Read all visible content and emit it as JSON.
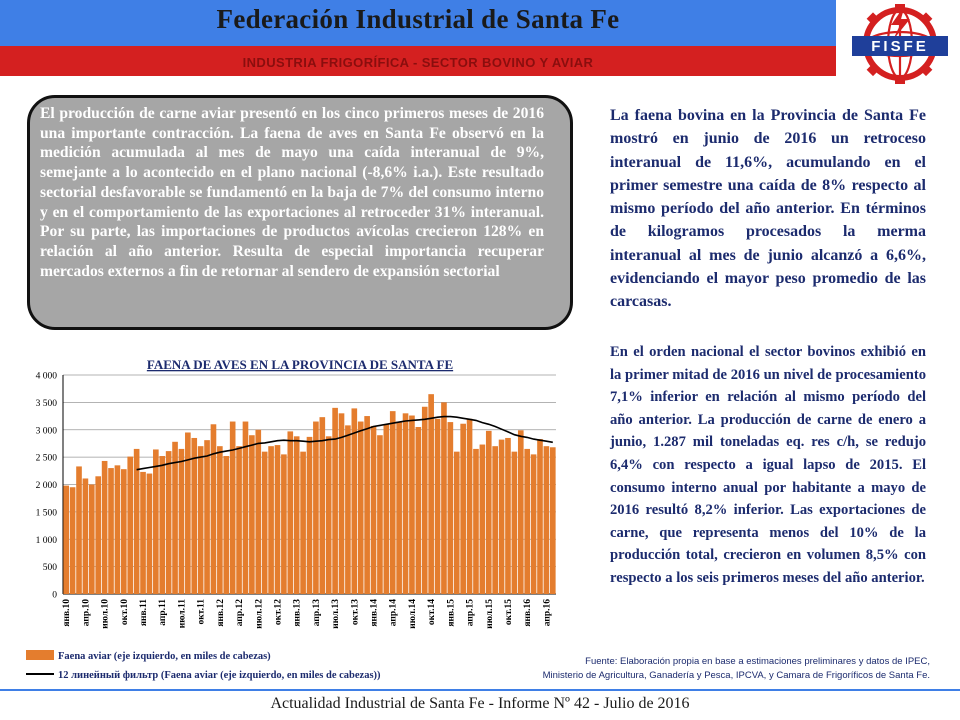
{
  "header": {
    "title": "Federación Industrial de Santa Fe",
    "subtitle": "INDUSTRIA FRIGORÍFICA - SECTOR BOVINO Y AVIAR",
    "logo_text": "FISFE"
  },
  "callout": {
    "text": "El producción de carne aviar presentó en los cinco primeros meses de 2016 una importante contracción. La faena de aves en Santa Fe observó en la medición acumulada al mes de mayo una caída interanual de 9%, semejante a lo acontecido en el plano nacional (-8,6% i.a.). Este resultado sectorial desfavorable se fundamentó en la baja de 7% del consumo interno y en el comportamiento de las exportaciones al retroceder 31% interanual. Por su parte, las importaciones de productos avícolas crecieron 128% en relación al año anterior. Resulta de especial importancia recuperar mercados externos a fin de retornar al sendero de expansión sectorial"
  },
  "right_column": {
    "paragraph_1": "La faena bovina en la Provincia de Santa Fe mostró en junio de 2016 un retroceso interanual de 11,6%, acumulando en el primer semestre una caída de 8% respecto al mismo período del año anterior. En términos de kilogramos procesados la merma interanual al mes de junio alcanzó a 6,6%, evidenciando el mayor peso promedio de las carcasas.",
    "paragraph_2": "En el orden nacional el sector bovinos exhibió en la primer mitad de 2016 un nivel de procesamiento 7,1% inferior en relación al mismo período del año anterior. La producción de carne de enero a junio, 1.287 mil toneladas eq. res c/h, se redujo 6,4% con respecto a igual lapso de 2015. El consumo interno anual por habitante a mayo de 2016 resultó 8,2% inferior. Las exportaciones de carne, que representa menos del 10% de la producción total, crecieron en volumen 8,5% con respecto a los seis primeros meses del año anterior."
  },
  "source": {
    "line_1": "Fuente: Elaboración propia en base a estimaciones preliminares y datos de IPEC,",
    "line_2": "Ministerio de Agricultura, Ganadería y Pesca, IPCVA, y Camara de Frigoríficos de Santa Fe."
  },
  "footer": {
    "text": "Actualidad Industrial de Santa Fe - Informe Nº 42 - Julio de 2016"
  },
  "colors": {
    "bar": "#e47d2e",
    "line": "#000000",
    "header_blue": "#3f7fe6",
    "header_red": "#d42020",
    "text_blue": "#1c2b6e"
  },
  "chart_data": {
    "type": "bar",
    "title": "FAENA DE AVES EN LA PROVINCIA DE SANTA FE",
    "xlabel": "",
    "ylabel": "",
    "ylim": [
      0,
      4000
    ],
    "yticks": [
      0,
      500,
      1000,
      1500,
      2000,
      2500,
      3000,
      3500,
      4000
    ],
    "ytick_labels": [
      "0",
      "500",
      "1 000",
      "1 500",
      "2 000",
      "2 500",
      "3 000",
      "3 500",
      "4 000"
    ],
    "xtick_labels": [
      "янв.10",
      "апр.10",
      "июл.10",
      "окт.10",
      "янв.11",
      "апр.11",
      "июл.11",
      "окт.11",
      "янв.12",
      "апр.12",
      "июл.12",
      "окт.12",
      "янв.13",
      "апр.13",
      "июл.13",
      "окт.13",
      "янв.14",
      "апр.14",
      "июл.14",
      "окт.14",
      "янв.15",
      "апр.15",
      "июл.15",
      "окт.15",
      "янв.16",
      "апр.16"
    ],
    "grid": true,
    "legend_position": "bottom-left",
    "series": [
      {
        "name": "Faena aviar (eje izquierdo, en miles de cabezas)",
        "kind": "bar",
        "values": [
          1980,
          1950,
          2330,
          2110,
          2000,
          2150,
          2430,
          2300,
          2350,
          2280,
          2510,
          2650,
          2230,
          2200,
          2640,
          2520,
          2610,
          2780,
          2650,
          2950,
          2850,
          2700,
          2810,
          3100,
          2700,
          2520,
          3150,
          2700,
          3150,
          2900,
          3000,
          2600,
          2700,
          2720,
          2550,
          2970,
          2880,
          2600,
          2870,
          3150,
          3230,
          2880,
          3400,
          3300,
          3080,
          3390,
          3150,
          3250,
          3070,
          2900,
          3100,
          3340,
          3150,
          3300,
          3260,
          3050,
          3420,
          3650,
          3200,
          3500,
          3140,
          2600,
          3110,
          3200,
          2650,
          2730,
          2980,
          2700,
          2820,
          2850,
          2600,
          2990,
          2650,
          2550,
          2830,
          2700,
          2680
        ]
      },
      {
        "name": "12 линейный фильтр (Faena aviar (eje izquierdo, en miles de cabezas))",
        "kind": "line",
        "start_index": 11,
        "values": [
          2270,
          2290,
          2310,
          2330,
          2350,
          2380,
          2400,
          2420,
          2450,
          2480,
          2500,
          2520,
          2560,
          2590,
          2610,
          2630,
          2660,
          2690,
          2720,
          2750,
          2760,
          2780,
          2800,
          2810,
          2800,
          2800,
          2790,
          2780,
          2790,
          2800,
          2820,
          2830,
          2860,
          2900,
          2940,
          2980,
          3020,
          3060,
          3080,
          3100,
          3120,
          3140,
          3160,
          3170,
          3180,
          3190,
          3210,
          3230,
          3240,
          3240,
          3230,
          3210,
          3190,
          3170,
          3130,
          3100,
          3060,
          3010,
          2960,
          2910,
          2880,
          2860,
          2830,
          2810,
          2790,
          2770
        ]
      }
    ]
  }
}
